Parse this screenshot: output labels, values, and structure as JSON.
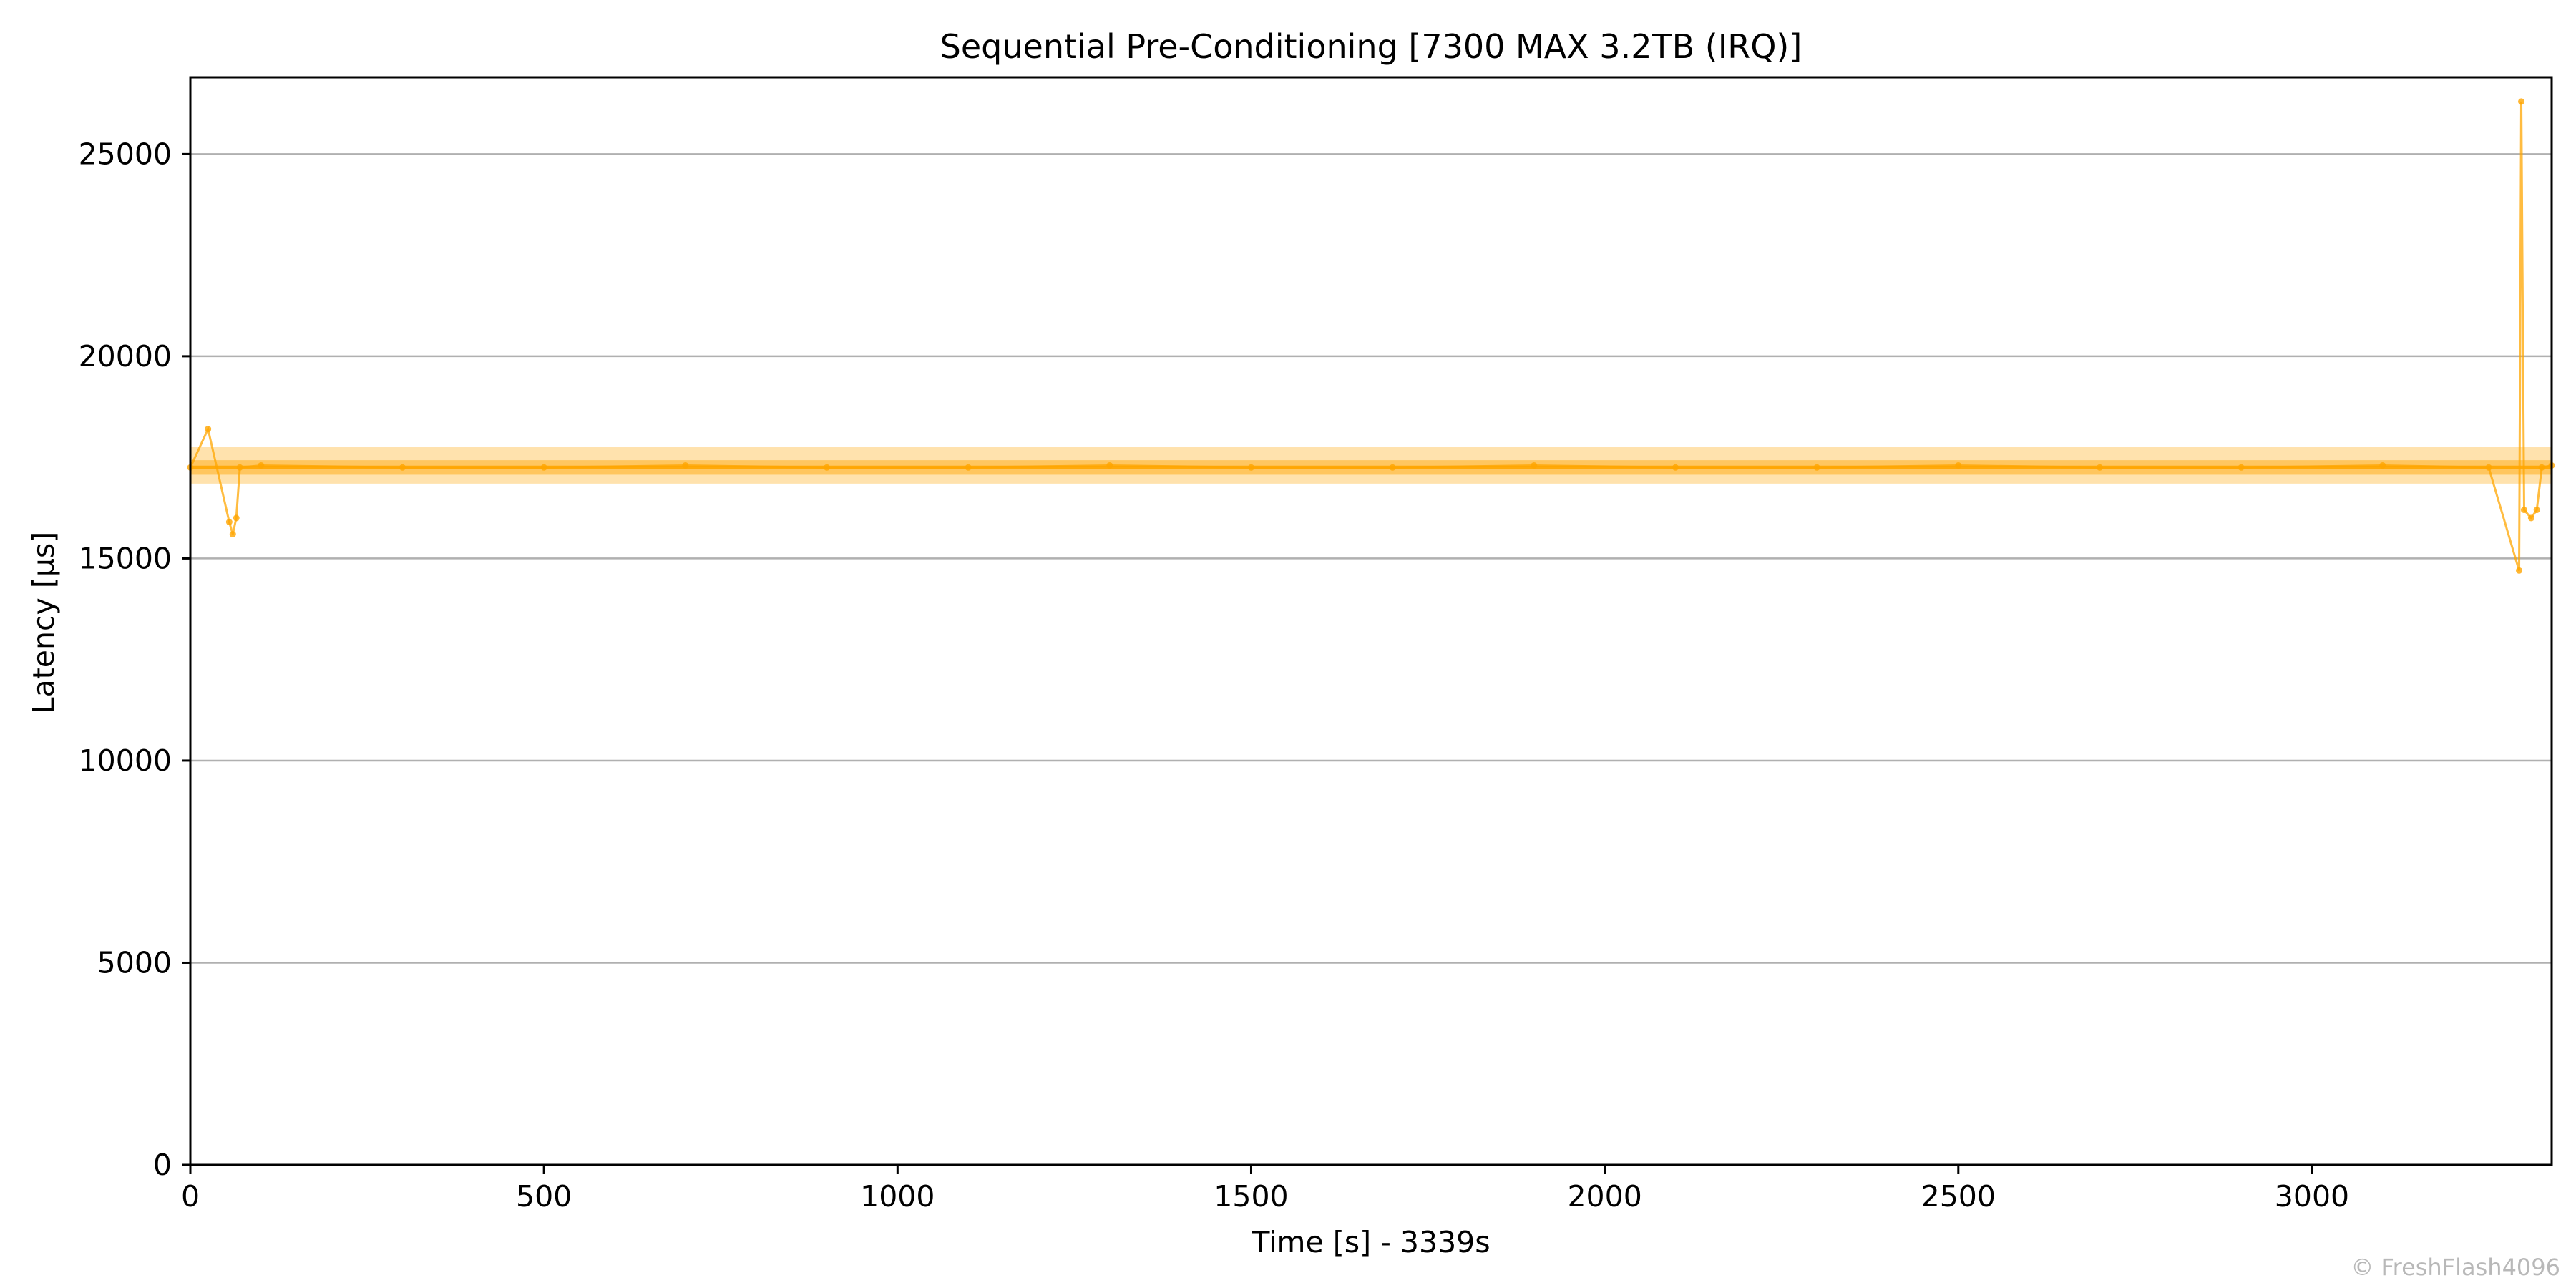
{
  "chart_data": {
    "type": "scatter",
    "title": "Sequential Pre-Conditioning [7300 MAX 3.2TB (IRQ)]",
    "xlabel": "Time [s] - 3339s",
    "ylabel": "Latency [µs]",
    "xlim": [
      0,
      3339
    ],
    "ylim": [
      0,
      26900
    ],
    "xticks": [
      0,
      500,
      1000,
      1500,
      2000,
      2500,
      3000
    ],
    "yticks": [
      0,
      5000,
      10000,
      15000,
      20000,
      25000
    ],
    "grid": "horizontal",
    "series": [
      {
        "color": "#ffa500",
        "baseline_latency": 17250,
        "band_low": 16850,
        "band_high": 17750,
        "x": [
          0,
          25,
          55,
          60,
          65,
          70,
          100,
          300,
          500,
          700,
          900,
          1100,
          1300,
          1500,
          1700,
          1900,
          2100,
          2300,
          2500,
          2700,
          2900,
          3100,
          3250,
          3293,
          3296,
          3300,
          3310,
          3318,
          3325,
          3339
        ],
        "y": [
          17250,
          18200,
          15900,
          15600,
          16000,
          17250,
          17300,
          17250,
          17250,
          17300,
          17250,
          17250,
          17300,
          17250,
          17250,
          17300,
          17250,
          17250,
          17300,
          17250,
          17250,
          17300,
          17250,
          14700,
          26300,
          16200,
          16000,
          16200,
          17250,
          17300
        ]
      }
    ]
  },
  "watermark": "© FreshFlash4096"
}
